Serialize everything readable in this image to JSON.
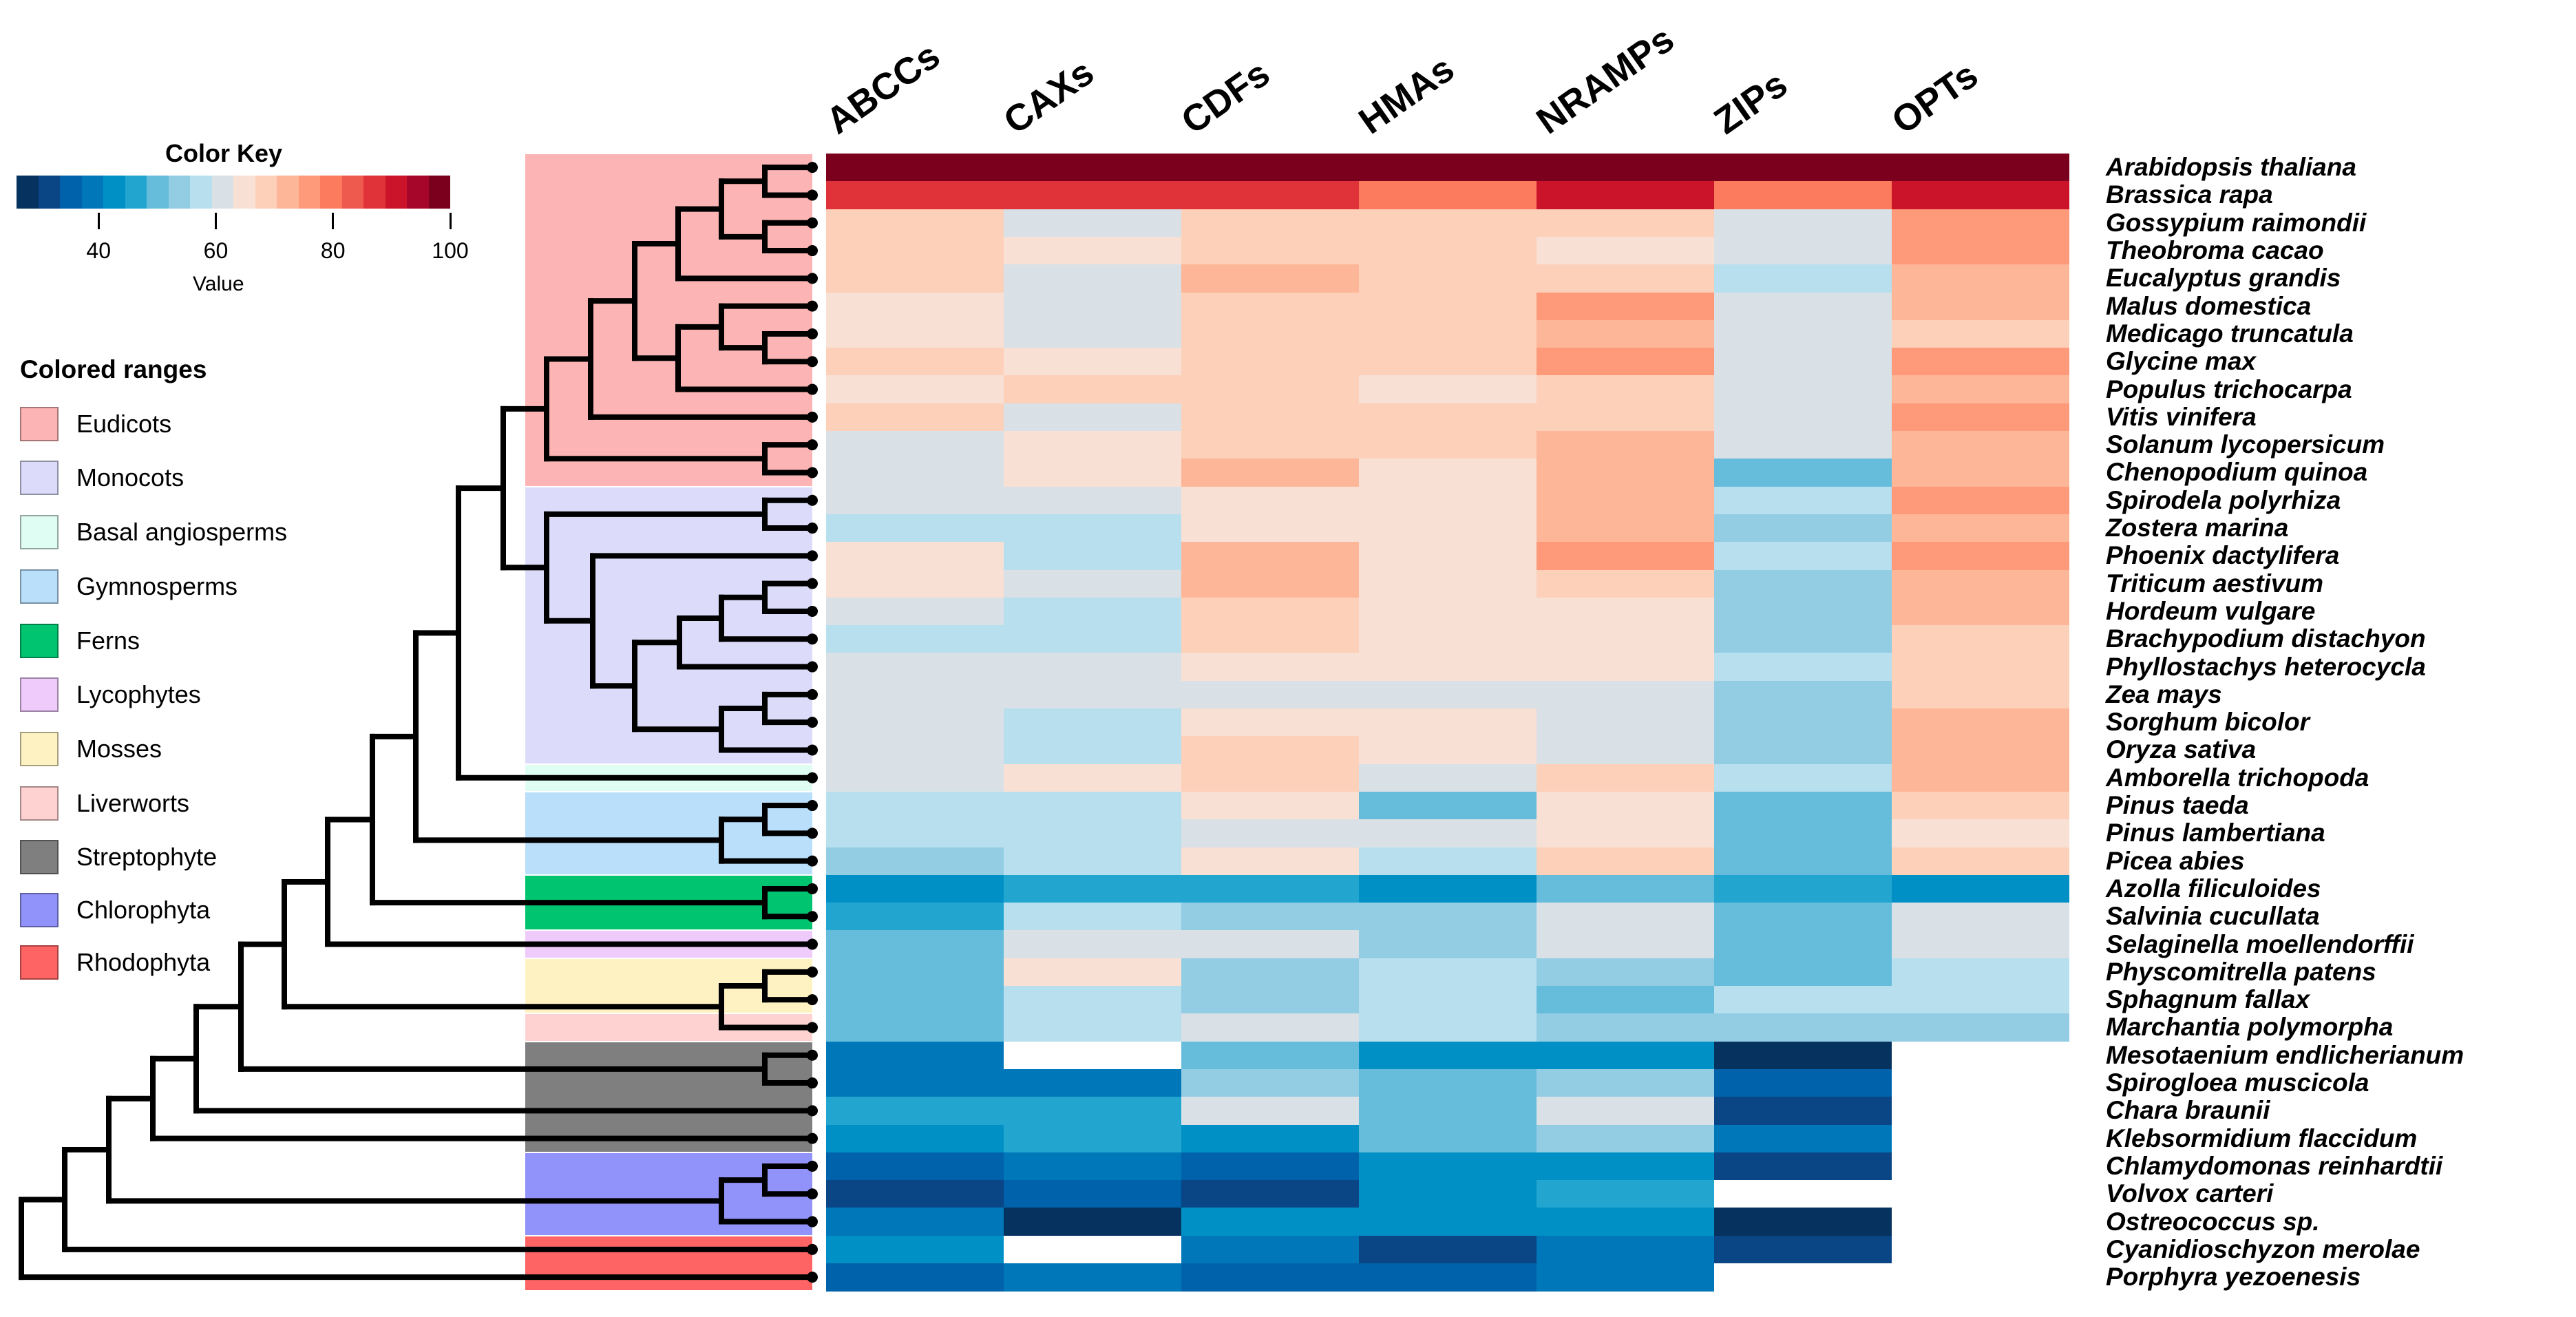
{
  "color_key": {
    "title": "Color Key",
    "ticks": [
      "40",
      "60",
      "80",
      "100"
    ],
    "tick_values": [
      40,
      60,
      80,
      100
    ],
    "label": "Value",
    "range": [
      26,
      100
    ],
    "palette": [
      "#06325f",
      "#0a4585",
      "#0062aa",
      "#0077b8",
      "#0090c6",
      "#22a6d0",
      "#66bcdb",
      "#93cde4",
      "#b8dfee",
      "#d9e1e7",
      "#f8e0d5",
      "#fdd0b9",
      "#feb698",
      "#fe9a7a",
      "#fc7b5f",
      "#ee5a4e",
      "#e03339",
      "#cb1429",
      "#a6062a",
      "#7a001d"
    ]
  },
  "legend": {
    "title": "Colored ranges",
    "items": [
      {
        "label": "Eudicots",
        "color": "#fdb4b4"
      },
      {
        "label": "Monocots",
        "color": "#dcdcfa"
      },
      {
        "label": "Basal angiosperms",
        "color": "#e0fdf4"
      },
      {
        "label": "Gymnosperms",
        "color": "#b9dffb"
      },
      {
        "label": "Ferns",
        "color": "#00c46f"
      },
      {
        "label": "Lycophytes",
        "color": "#efcbfb"
      },
      {
        "label": "Mosses",
        "color": "#fff2c2"
      },
      {
        "label": "Liverworts",
        "color": "#ffd2d2"
      },
      {
        "label": "Streptophyte",
        "color": "#7f7f7f"
      },
      {
        "label": "Chlorophyta",
        "color": "#9292fb"
      },
      {
        "label": "Rhodophyta",
        "color": "#ff6464"
      }
    ]
  },
  "chart_data": {
    "type": "heatmap",
    "title": "",
    "columns": [
      "ABCCs",
      "CAXs",
      "CDFs",
      "HMAs",
      "NRAMPs",
      "ZIPs",
      "OPTs"
    ],
    "rows": [
      "Arabidopsis thaliana",
      "Brassica rapa",
      "Gossypium raimondii",
      "Theobroma cacao",
      "Eucalyptus grandis",
      "Malus domestica",
      "Medicago truncatula",
      "Glycine max",
      "Populus trichocarpa",
      "Vitis vinifera",
      "Solanum lycopersicum",
      "Chenopodium quinoa",
      "Spirodela polyrhiza",
      "Zostera marina",
      "Phoenix dactylifera",
      "Triticum aestivum",
      "Hordeum vulgare",
      "Brachypodium distachyon",
      "Phyllostachys heterocycla",
      "Zea mays",
      "Sorghum bicolor",
      "Oryza sativa",
      "Amborella trichopoda",
      "Pinus taeda",
      "Pinus lambertiana",
      "Picea abies",
      "Azolla filiculoides",
      "Salvinia cucullata",
      "Selaginella moellendorffii",
      "Physcomitrella patens",
      "Sphagnum fallax",
      "Marchantia polymorpha",
      "Mesotaenium endlicherianum",
      "Spirogloea muscicola",
      "Chara braunii",
      "Klebsormidium flaccidum",
      "Chlamydomonas reinhardtii",
      "Volvox carteri",
      "Ostreococcus sp.",
      "Cyanidioschyzon merolae",
      "Porphyra yezoenesis"
    ],
    "values": [
      [
        98,
        98,
        98,
        98,
        98,
        98,
        98
      ],
      [
        87,
        87,
        87,
        80,
        91,
        80,
        91
      ],
      [
        69,
        61,
        69,
        69,
        69,
        61,
        76
      ],
      [
        69,
        65,
        69,
        69,
        65,
        61,
        76
      ],
      [
        69,
        61,
        72,
        69,
        69,
        57,
        72
      ],
      [
        65,
        61,
        69,
        69,
        76,
        61,
        72
      ],
      [
        65,
        61,
        69,
        69,
        72,
        61,
        69
      ],
      [
        69,
        65,
        69,
        69,
        76,
        61,
        76
      ],
      [
        65,
        69,
        69,
        65,
        69,
        61,
        72
      ],
      [
        69,
        61,
        69,
        69,
        69,
        61,
        76
      ],
      [
        61,
        65,
        69,
        69,
        72,
        61,
        72
      ],
      [
        61,
        65,
        72,
        65,
        72,
        50,
        72
      ],
      [
        61,
        61,
        65,
        65,
        72,
        57,
        76
      ],
      [
        57,
        57,
        65,
        65,
        72,
        54,
        72
      ],
      [
        65,
        57,
        72,
        65,
        76,
        57,
        76
      ],
      [
        65,
        61,
        72,
        65,
        69,
        54,
        72
      ],
      [
        61,
        57,
        69,
        65,
        65,
        54,
        72
      ],
      [
        57,
        57,
        69,
        65,
        65,
        54,
        69
      ],
      [
        61,
        61,
        65,
        65,
        65,
        57,
        69
      ],
      [
        61,
        61,
        61,
        61,
        61,
        54,
        69
      ],
      [
        61,
        57,
        65,
        65,
        61,
        54,
        72
      ],
      [
        61,
        57,
        69,
        65,
        61,
        54,
        72
      ],
      [
        61,
        65,
        69,
        61,
        69,
        57,
        72
      ],
      [
        57,
        57,
        65,
        50,
        65,
        50,
        69
      ],
      [
        57,
        57,
        61,
        61,
        65,
        50,
        65
      ],
      [
        54,
        57,
        65,
        57,
        69,
        50,
        69
      ],
      [
        43,
        46,
        46,
        43,
        50,
        46,
        43
      ],
      [
        46,
        57,
        54,
        54,
        61,
        50,
        61
      ],
      [
        50,
        61,
        61,
        54,
        61,
        50,
        61
      ],
      [
        50,
        65,
        54,
        57,
        54,
        50,
        57
      ],
      [
        50,
        57,
        54,
        57,
        50,
        57,
        57
      ],
      [
        50,
        57,
        61,
        57,
        54,
        54,
        54
      ],
      [
        39,
        null,
        50,
        43,
        43,
        28,
        null
      ],
      [
        39,
        39,
        54,
        50,
        54,
        35,
        null
      ],
      [
        46,
        46,
        61,
        50,
        61,
        32,
        null
      ],
      [
        43,
        46,
        43,
        50,
        54,
        39,
        null
      ],
      [
        35,
        39,
        35,
        43,
        43,
        32,
        null
      ],
      [
        32,
        35,
        32,
        43,
        46,
        null,
        null
      ],
      [
        39,
        28,
        43,
        43,
        43,
        28,
        null
      ],
      [
        43,
        null,
        39,
        32,
        39,
        32,
        null
      ],
      [
        35,
        39,
        35,
        35,
        39,
        null,
        null
      ]
    ],
    "groups": [
      {
        "name": "Eudicots",
        "rows": [
          0,
          11
        ]
      },
      {
        "name": "Monocots",
        "rows": [
          12,
          21
        ]
      },
      {
        "name": "Basal angiosperms",
        "rows": [
          22,
          22
        ]
      },
      {
        "name": "Gymnosperms",
        "rows": [
          23,
          25
        ]
      },
      {
        "name": "Ferns",
        "rows": [
          26,
          27
        ]
      },
      {
        "name": "Lycophytes",
        "rows": [
          28,
          28
        ]
      },
      {
        "name": "Mosses",
        "rows": [
          29,
          30
        ]
      },
      {
        "name": "Liverworts",
        "rows": [
          31,
          31
        ]
      },
      {
        "name": "Streptophyte",
        "rows": [
          32,
          35
        ]
      },
      {
        "name": "Chlorophyta",
        "rows": [
          36,
          38
        ]
      },
      {
        "name": "Rhodophyta",
        "rows": [
          39,
          40
        ]
      }
    ],
    "missing_color": "#ffffff",
    "legend_position": "left"
  }
}
